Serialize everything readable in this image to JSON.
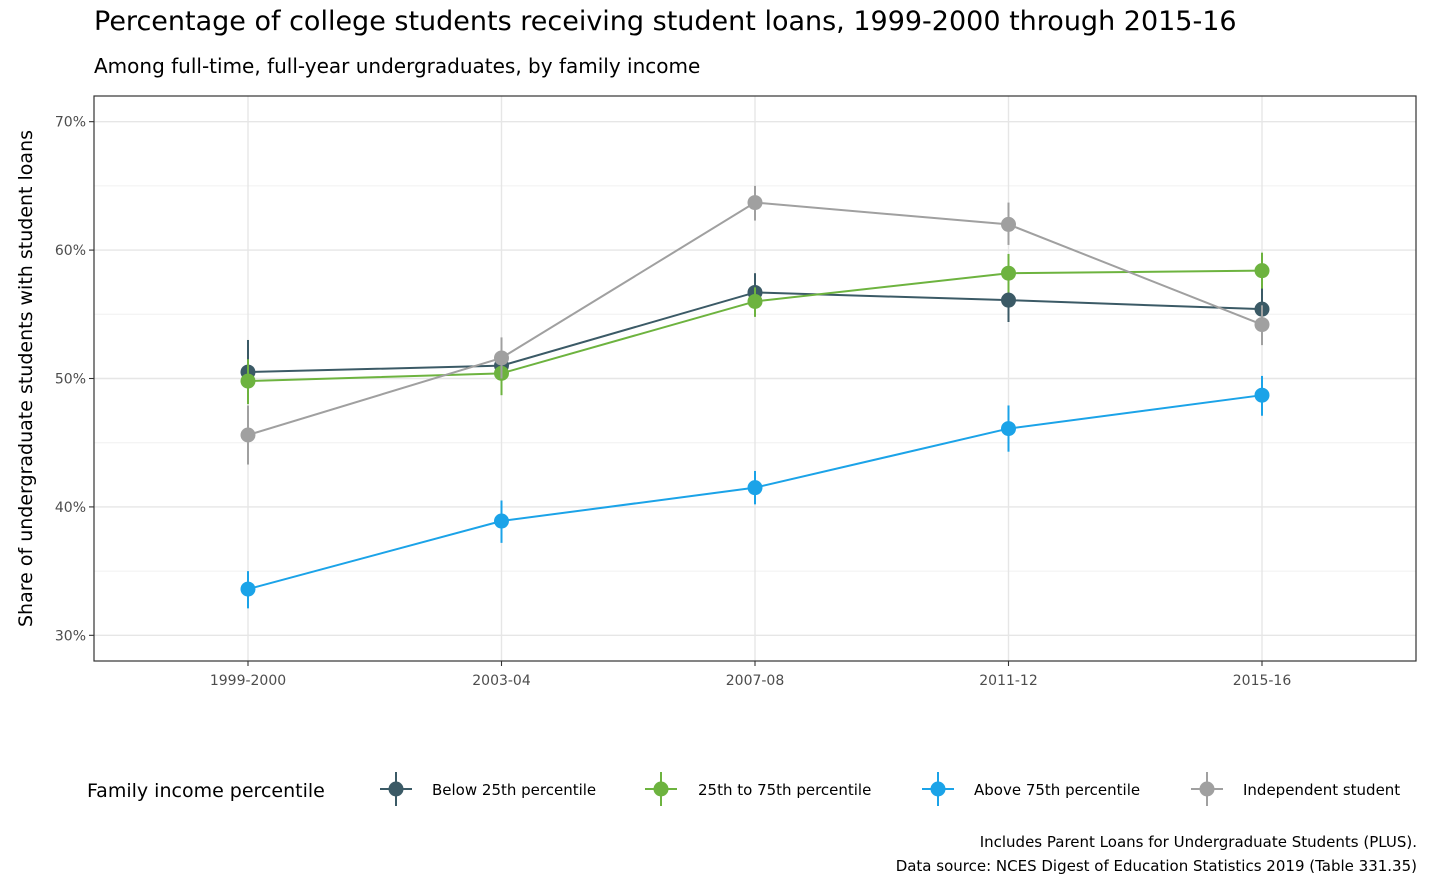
{
  "title": "Percentage of college students receiving student loans, 1999-2000 through 2015-16",
  "subtitle": "Among full-time, full-year undergraduates, by family income",
  "caption_line1": "Includes Parent Loans for Undergraduate Students (PLUS).",
  "caption_line2": "Data source: NCES Digest of Education Statistics 2019 (Table 331.35)",
  "chart_data": {
    "type": "line",
    "ylabel": "Share of undergraduate students with student loans",
    "xlabel": "",
    "categories": [
      "1999-2000",
      "2003-04",
      "2007-08",
      "2011-12",
      "2015-16"
    ],
    "ylim": [
      0.28,
      0.72
    ],
    "yticks": [
      0.3,
      0.4,
      0.5,
      0.6,
      0.7
    ],
    "ytick_labels": [
      "30%",
      "40%",
      "50%",
      "60%",
      "70%"
    ],
    "grid": true,
    "legend_position": "bottom",
    "legend_title": "Family income percentile",
    "error_bars": true,
    "series": [
      {
        "name": "Below 25th percentile",
        "color": "#3b5a66",
        "values": [
          0.505,
          0.51,
          0.567,
          0.561,
          0.554
        ],
        "lower": [
          0.481,
          0.494,
          0.553,
          0.544,
          0.536
        ],
        "upper": [
          0.53,
          0.526,
          0.582,
          0.577,
          0.571
        ]
      },
      {
        "name": "25th to 75th percentile",
        "color": "#6db33f",
        "values": [
          0.498,
          0.504,
          0.56,
          0.582,
          0.584
        ],
        "lower": [
          0.48,
          0.487,
          0.548,
          0.567,
          0.57
        ],
        "upper": [
          0.515,
          0.522,
          0.571,
          0.597,
          0.598
        ]
      },
      {
        "name": "Above 75th percentile",
        "color": "#1ba3e8",
        "values": [
          0.336,
          0.389,
          0.415,
          0.461,
          0.487
        ],
        "lower": [
          0.321,
          0.372,
          0.402,
          0.443,
          0.471
        ],
        "upper": [
          0.35,
          0.405,
          0.428,
          0.479,
          0.502
        ]
      },
      {
        "name": "Independent student",
        "color": "#a0a0a0",
        "values": [
          0.456,
          0.516,
          0.637,
          0.62,
          0.542
        ],
        "lower": [
          0.433,
          0.5,
          0.623,
          0.604,
          0.526
        ],
        "upper": [
          0.479,
          0.532,
          0.65,
          0.637,
          0.557
        ]
      }
    ]
  }
}
